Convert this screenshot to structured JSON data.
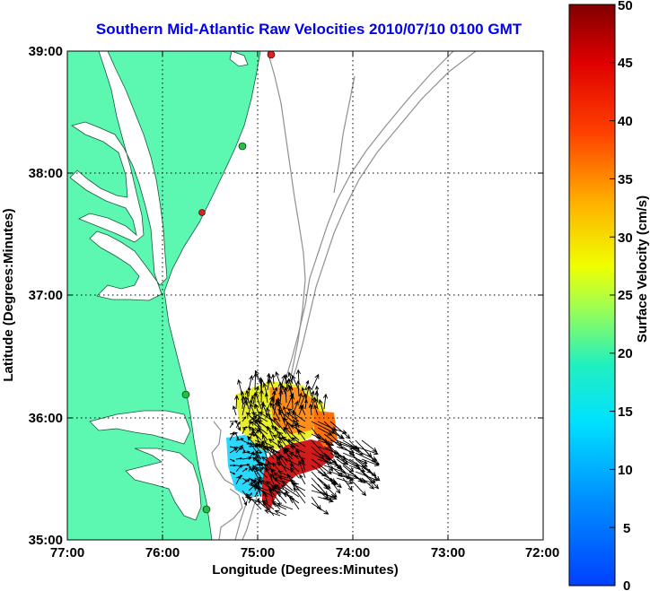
{
  "title": "Southern Mid-Atlantic Raw Velocities 2010/07/10 0100 GMT",
  "x_axis": {
    "label": "Longitude (Degrees:Minutes)",
    "ticks": [
      "77:00",
      "76:00",
      "75:00",
      "74:00",
      "73:00",
      "72:00"
    ]
  },
  "y_axis": {
    "label": "Latitude (Degrees:Minutes)",
    "ticks": [
      "39:00",
      "38:00",
      "37:00",
      "36:00",
      "35:00"
    ]
  },
  "colorbar": {
    "label": "Surface Velocity (cm/s)",
    "ticks": [
      "50",
      "45",
      "40",
      "35",
      "30",
      "25",
      "20",
      "15",
      "10",
      "5",
      "0"
    ],
    "min": 0,
    "max": 50
  },
  "colors": {
    "land": "#5cf7b0",
    "water": "#ffffff",
    "title": "#0000ee",
    "isobath": "#909090",
    "grid": "#000000"
  },
  "stations": [
    {
      "color": "#e02020"
    },
    {
      "color": "#20c040"
    },
    {
      "color": "#e02020"
    },
    {
      "color": "#20c040"
    },
    {
      "color": "#20c040"
    }
  ]
}
